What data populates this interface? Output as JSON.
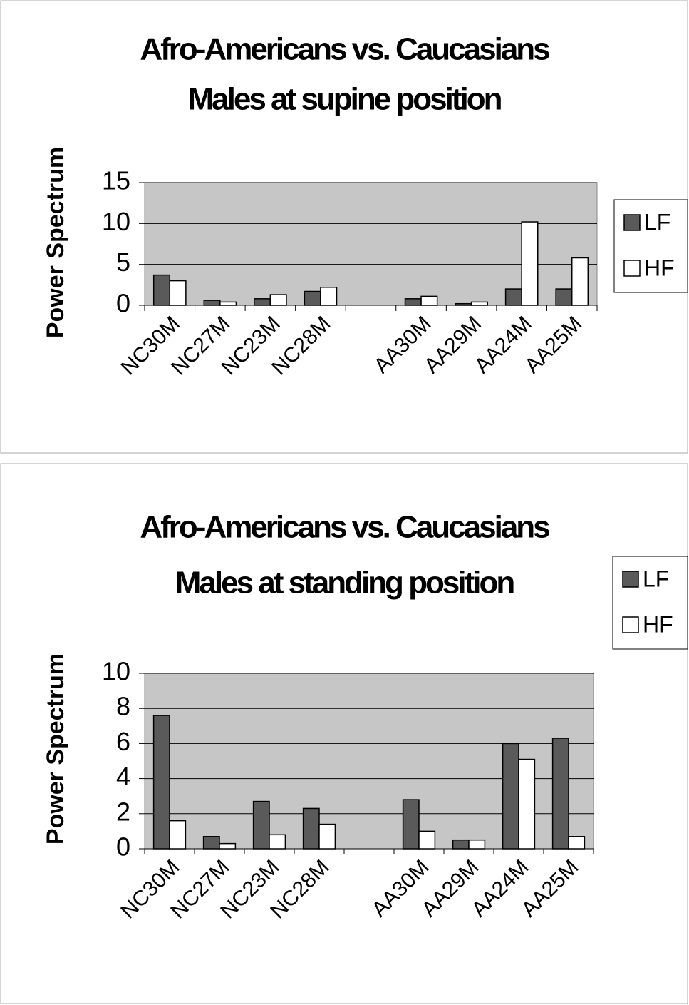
{
  "chart_data": [
    {
      "type": "bar",
      "title": "Afro-Americans vs. Caucasians",
      "subtitle": "Males at supine position",
      "y_label": "Power Spectrum",
      "categories": [
        "NC30M",
        "NC27M",
        "NC23M",
        "NC28M",
        null,
        "AA30M",
        "AA29M",
        "AA24M",
        "AA25M"
      ],
      "series": [
        {
          "name": "LF",
          "color": "#5a5a5a",
          "values": [
            3.7,
            0.6,
            0.8,
            1.7,
            null,
            0.8,
            0.2,
            2.0,
            2.0
          ]
        },
        {
          "name": "HF",
          "color": "#ffffff",
          "values": [
            3.0,
            0.4,
            1.3,
            2.2,
            null,
            1.1,
            0.4,
            10.2,
            5.8
          ]
        }
      ],
      "ylim": [
        0,
        15
      ],
      "yticks": [
        0,
        5,
        10,
        15
      ],
      "grid": true,
      "legend": "right"
    },
    {
      "type": "bar",
      "title": "Afro-Americans vs. Caucasians",
      "subtitle": "Males at standing position",
      "y_label": "Power Spectrum",
      "categories": [
        "NC30M",
        "NC27M",
        "NC23M",
        "NC28M",
        null,
        "AA30M",
        "AA29M",
        "AA24M",
        "AA25M"
      ],
      "series": [
        {
          "name": "LF",
          "color": "#5a5a5a",
          "values": [
            7.6,
            0.7,
            2.7,
            2.3,
            null,
            2.8,
            0.5,
            6.0,
            6.3
          ]
        },
        {
          "name": "HF",
          "color": "#ffffff",
          "values": [
            1.6,
            0.3,
            0.8,
            1.4,
            null,
            1.0,
            0.5,
            5.1,
            0.7
          ]
        }
      ],
      "ylim": [
        0,
        10
      ],
      "yticks": [
        0,
        2,
        4,
        6,
        8,
        10
      ],
      "grid": true,
      "legend": "right"
    }
  ]
}
